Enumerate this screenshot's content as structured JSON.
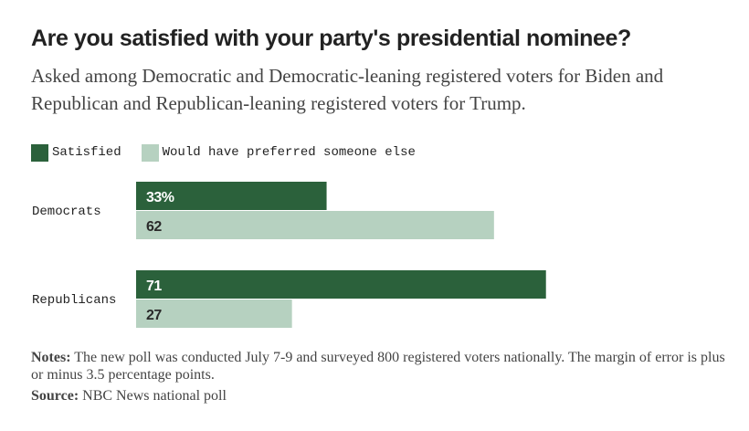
{
  "header": {
    "title": "Are you satisfied with your party's presidential nominee?",
    "subtitle": "Asked among Democratic and Democratic-leaning registered voters for Biden and Republican and Republican-leaning registered voters for Trump."
  },
  "colors": {
    "satisfied": "#2b613b",
    "preferred_else": "#b6d1c0",
    "label_dark": "#ffffff",
    "label_light": "#2a2a2a"
  },
  "chart_data": {
    "type": "bar",
    "orientation": "horizontal",
    "categories": [
      "Democrats",
      "Republicans"
    ],
    "series": [
      {
        "name": "Satisfied",
        "values": [
          33,
          71
        ],
        "labels": [
          "33%",
          "71"
        ]
      },
      {
        "name": "Would have preferred someone else",
        "values": [
          62,
          27
        ],
        "labels": [
          "62",
          "27"
        ]
      }
    ],
    "xlim": [
      0,
      100
    ],
    "grid": false,
    "legend_position": "top-left"
  },
  "footer": {
    "notes_label": "Notes:",
    "notes_text": "The new poll was conducted July 7-9 and surveyed 800 registered voters nationally. The margin of error is plus or minus 3.5 percentage points.",
    "source_label": "Source:",
    "source_text": "NBC News national poll"
  }
}
